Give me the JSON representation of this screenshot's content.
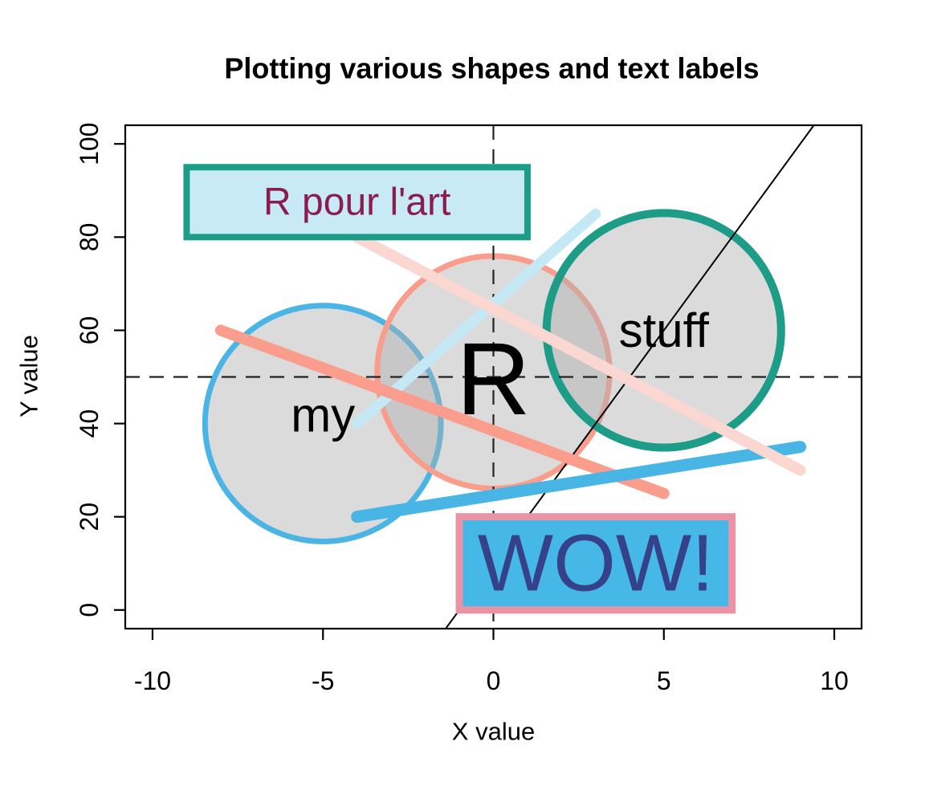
{
  "page": {
    "background": "#ffffff"
  },
  "chart_data": {
    "type": "scatter",
    "title": "Plotting various shapes and text labels",
    "xlabel": "X value",
    "ylabel": "Y value",
    "xlim": [
      -10,
      10
    ],
    "ylim": [
      0,
      100
    ],
    "x_usr": [
      -10.8,
      10.8
    ],
    "y_usr": [
      -4,
      104
    ],
    "xticks": [
      "-10",
      "-5",
      "0",
      "5",
      "10"
    ],
    "xtick_values": [
      -10,
      -5,
      0,
      5,
      10
    ],
    "yticks": [
      "0",
      "20",
      "40",
      "60",
      "80",
      "100"
    ],
    "ytick_values": [
      0,
      20,
      40,
      60,
      80,
      100
    ],
    "grid": false,
    "legend": null,
    "palette": {
      "sky_blue": "#4AB5E4",
      "blue_segment": "#49B5E5",
      "salmon": "#FA9D8D",
      "pale_pink": "#FAD7D0",
      "light_blue": "#C5E8F5",
      "teal": "#1D9D88",
      "light_cyan_fill": "#C8E9F6",
      "wow_fill": "#45B8E8",
      "maroon_text": "#8B1C4D",
      "pink_border": "#EA93A7",
      "navy_text": "#354289",
      "circle_fill": "rgba(175,175,175,0.45)",
      "dash_line": "#222222",
      "black": "#000000"
    },
    "reference_lines": [
      {
        "name": "dashed-horizontal-line",
        "style": "dashed",
        "y": 50
      },
      {
        "name": "dashed-vertical-line",
        "style": "dashed",
        "x": 0
      },
      {
        "name": "diagonal-abline",
        "style": "solid",
        "intercept": 10,
        "slope": 10
      }
    ],
    "circles": [
      {
        "name": "circle-my",
        "cx": -5,
        "cy": 40,
        "r": 3.46,
        "stroke": "sky_blue",
        "stroke_width": 7
      },
      {
        "name": "circle-r",
        "cx": 0,
        "cy": 51,
        "r": 3.41,
        "stroke": "salmon",
        "stroke_width": 7
      },
      {
        "name": "circle-stuff",
        "cx": 5,
        "cy": 60,
        "r": 3.44,
        "stroke": "teal",
        "stroke_width": 10
      }
    ],
    "point_labels": [
      {
        "name": "point-label-my",
        "text": "my",
        "x": -5,
        "y": 41.8,
        "size": 60,
        "color": "black"
      },
      {
        "name": "point-label-r",
        "text": "R",
        "x": 0,
        "y": 49.5,
        "size": 128,
        "color": "black"
      },
      {
        "name": "point-label-stuff",
        "text": "stuff",
        "x": 5,
        "y": 60,
        "size": 60,
        "color": "black"
      }
    ],
    "segments": [
      {
        "name": "segment-light-blue",
        "x1": -4,
        "y1": 40,
        "x2": 3,
        "y2": 85,
        "color": "light_blue",
        "width": 13
      },
      {
        "name": "segment-salmon",
        "x1": -8,
        "y1": 60,
        "x2": 5,
        "y2": 25,
        "color": "salmon",
        "width": 14
      },
      {
        "name": "segment-blue",
        "x1": -4,
        "y1": 20,
        "x2": 9,
        "y2": 35,
        "color": "blue_segment",
        "width": 15
      },
      {
        "name": "segment-pale-pink",
        "x1": -4,
        "y1": 80,
        "x2": 9,
        "y2": 30,
        "color": "pale_pink",
        "width": 14
      }
    ],
    "boxes": [
      {
        "name": "box-r-pour-lart",
        "x1": -9,
        "y1": 80,
        "x2": 1,
        "y2": 95,
        "fill": "light_cyan_fill",
        "border": "teal",
        "border_width": 8,
        "text": "R pour l'art",
        "text_color": "maroon_text",
        "text_size": 48
      },
      {
        "name": "box-wow",
        "x1": -1,
        "y1": 0,
        "x2": 7,
        "y2": 20,
        "fill": "wow_fill",
        "border": "pink_border",
        "border_width": 9,
        "text": "WOW!",
        "text_color": "navy_text",
        "text_size": 100
      }
    ]
  }
}
